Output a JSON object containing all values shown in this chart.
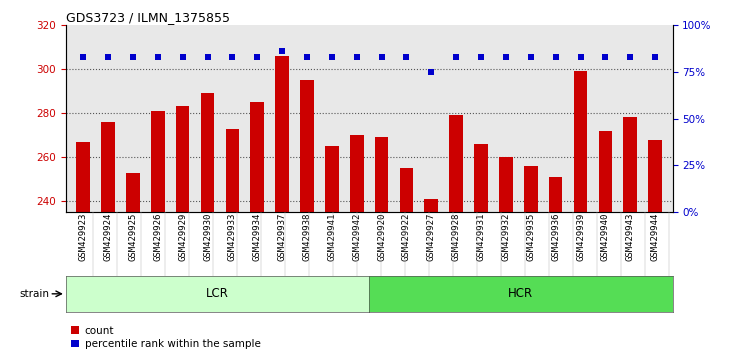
{
  "title": "GDS3723 / ILMN_1375855",
  "samples": [
    "GSM429923",
    "GSM429924",
    "GSM429925",
    "GSM429926",
    "GSM429929",
    "GSM429930",
    "GSM429933",
    "GSM429934",
    "GSM429937",
    "GSM429938",
    "GSM429941",
    "GSM429942",
    "GSM429920",
    "GSM429922",
    "GSM429927",
    "GSM429928",
    "GSM429931",
    "GSM429932",
    "GSM429935",
    "GSM429936",
    "GSM429939",
    "GSM429940",
    "GSM429943",
    "GSM429944"
  ],
  "counts": [
    267,
    276,
    253,
    281,
    283,
    289,
    273,
    285,
    306,
    295,
    265,
    270,
    269,
    255,
    241,
    279,
    266,
    260,
    256,
    251,
    299,
    272,
    278,
    268
  ],
  "percentile_ranks": [
    83,
    83,
    83,
    83,
    83,
    83,
    83,
    83,
    86,
    83,
    83,
    83,
    83,
    83,
    75,
    83,
    83,
    83,
    83,
    83,
    83,
    83,
    83,
    83
  ],
  "lcr_count": 12,
  "hcr_count": 12,
  "bar_color": "#cc0000",
  "dot_color": "#0000cc",
  "ylim_left": [
    235,
    320
  ],
  "ylim_right": [
    0,
    100
  ],
  "yticks_left": [
    240,
    260,
    280,
    300,
    320
  ],
  "yticks_right": [
    0,
    25,
    50,
    75,
    100
  ],
  "lcr_color": "#ccffcc",
  "hcr_color": "#55dd55",
  "strain_label": "strain",
  "legend_count_label": "count",
  "legend_pct_label": "percentile rank within the sample",
  "grid_color": "#555555",
  "bg_plot": "#e8e8e8",
  "tick_label_color_left": "#cc0000",
  "tick_label_color_right": "#0000cc"
}
